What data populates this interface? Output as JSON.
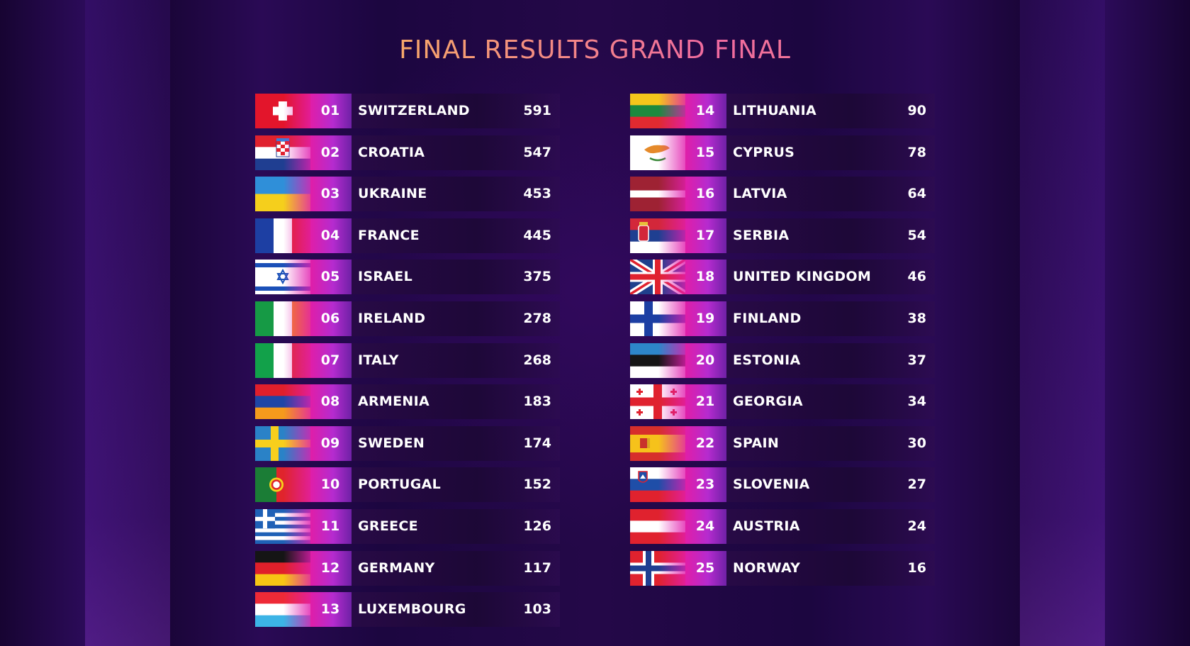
{
  "title": "FINAL RESULTS GRAND FINAL",
  "left_column": [
    {
      "rank": "01",
      "country": "SWITZERLAND",
      "points": "591",
      "flag": "switzerland-flag"
    },
    {
      "rank": "02",
      "country": "CROATIA",
      "points": "547",
      "flag": "croatia-flag"
    },
    {
      "rank": "03",
      "country": "UKRAINE",
      "points": "453",
      "flag": "ukraine-flag"
    },
    {
      "rank": "04",
      "country": "FRANCE",
      "points": "445",
      "flag": "france-flag"
    },
    {
      "rank": "05",
      "country": "ISRAEL",
      "points": "375",
      "flag": "israel-flag"
    },
    {
      "rank": "06",
      "country": "IRELAND",
      "points": "278",
      "flag": "ireland-flag"
    },
    {
      "rank": "07",
      "country": "ITALY",
      "points": "268",
      "flag": "italy-flag"
    },
    {
      "rank": "08",
      "country": "ARMENIA",
      "points": "183",
      "flag": "armenia-flag"
    },
    {
      "rank": "09",
      "country": "SWEDEN",
      "points": "174",
      "flag": "sweden-flag"
    },
    {
      "rank": "10",
      "country": "PORTUGAL",
      "points": "152",
      "flag": "portugal-flag"
    },
    {
      "rank": "11",
      "country": "GREECE",
      "points": "126",
      "flag": "greece-flag"
    },
    {
      "rank": "12",
      "country": "GERMANY",
      "points": "117",
      "flag": "germany-flag"
    },
    {
      "rank": "13",
      "country": "LUXEMBOURG",
      "points": "103",
      "flag": "luxembourg-flag"
    }
  ],
  "right_column": [
    {
      "rank": "14",
      "country": "LITHUANIA",
      "points": "90",
      "flag": "lithuania-flag"
    },
    {
      "rank": "15",
      "country": "CYPRUS",
      "points": "78",
      "flag": "cyprus-flag"
    },
    {
      "rank": "16",
      "country": "LATVIA",
      "points": "64",
      "flag": "latvia-flag"
    },
    {
      "rank": "17",
      "country": "SERBIA",
      "points": "54",
      "flag": "serbia-flag"
    },
    {
      "rank": "18",
      "country": "UNITED KINGDOM",
      "points": "46",
      "flag": "united-kingdom-flag"
    },
    {
      "rank": "19",
      "country": "FINLAND",
      "points": "38",
      "flag": "finland-flag"
    },
    {
      "rank": "20",
      "country": "ESTONIA",
      "points": "37",
      "flag": "estonia-flag"
    },
    {
      "rank": "21",
      "country": "GEORGIA",
      "points": "34",
      "flag": "georgia-flag"
    },
    {
      "rank": "22",
      "country": "SPAIN",
      "points": "30",
      "flag": "spain-flag"
    },
    {
      "rank": "23",
      "country": "SLOVENIA",
      "points": "27",
      "flag": "slovenia-flag"
    },
    {
      "rank": "24",
      "country": "AUSTRIA",
      "points": "24",
      "flag": "austria-flag"
    },
    {
      "rank": "25",
      "country": "NORWAY",
      "points": "16",
      "flag": "norway-flag"
    }
  ]
}
